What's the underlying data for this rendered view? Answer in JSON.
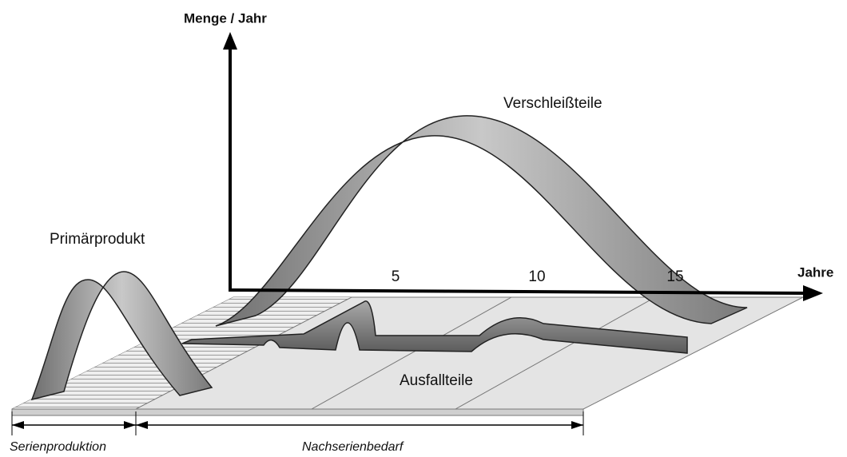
{
  "axes": {
    "y": {
      "label": "Menge / Jahr"
    },
    "x": {
      "label": "Jahre",
      "ticks": [
        "5",
        "10",
        "15"
      ]
    }
  },
  "curves": {
    "wear_parts": "Verschleißteile",
    "primary_product": "Primärprodukt",
    "failure_parts": "Ausfallteile"
  },
  "phases": {
    "series_production": "Serienproduktion",
    "after_series_demand": "Nachserienbedarf"
  }
}
